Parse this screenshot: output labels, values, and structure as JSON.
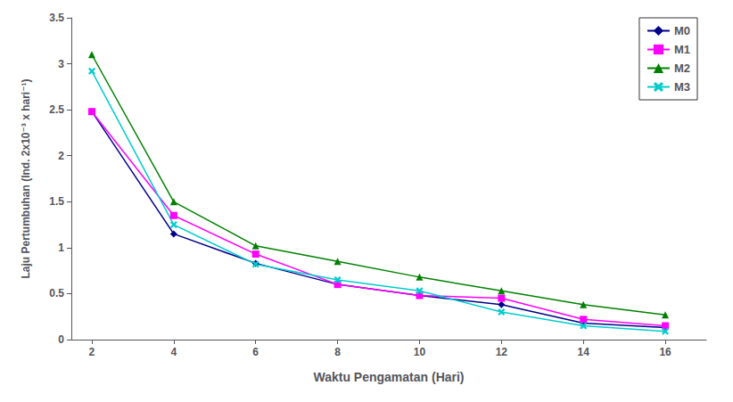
{
  "chart_data": {
    "type": "line",
    "xlabel": "Waktu Pengamatan (Hari)",
    "ylabel": "Laju Pertumbuhan (Ind. 2x10⁻³ x hari⁻¹)",
    "x": [
      2,
      4,
      6,
      8,
      10,
      12,
      14,
      16
    ],
    "series": [
      {
        "name": "M0",
        "color": "#00008B",
        "marker": "diamond",
        "values": [
          2.48,
          1.15,
          0.83,
          0.6,
          0.48,
          0.38,
          0.18,
          0.13
        ]
      },
      {
        "name": "M1",
        "color": "#FF00FF",
        "marker": "square",
        "values": [
          2.48,
          1.35,
          0.93,
          0.6,
          0.48,
          0.45,
          0.22,
          0.15
        ]
      },
      {
        "name": "M2",
        "color": "#008000",
        "marker": "triangle",
        "values": [
          3.1,
          1.5,
          1.02,
          0.85,
          0.68,
          0.53,
          0.38,
          0.27
        ]
      },
      {
        "name": "M3",
        "color": "#00CCCC",
        "marker": "x",
        "values": [
          2.92,
          1.25,
          0.82,
          0.65,
          0.53,
          0.3,
          0.15,
          0.09
        ]
      }
    ],
    "xlim": [
      1.5,
      17.0
    ],
    "xticks": [
      2,
      4,
      6,
      8,
      10,
      12,
      14,
      16
    ],
    "ylim": [
      0,
      3.5
    ],
    "yticks": [
      0,
      0.5,
      1,
      1.5,
      2,
      2.5,
      3,
      3.5
    ],
    "grid": false,
    "legend": "upper right"
  }
}
